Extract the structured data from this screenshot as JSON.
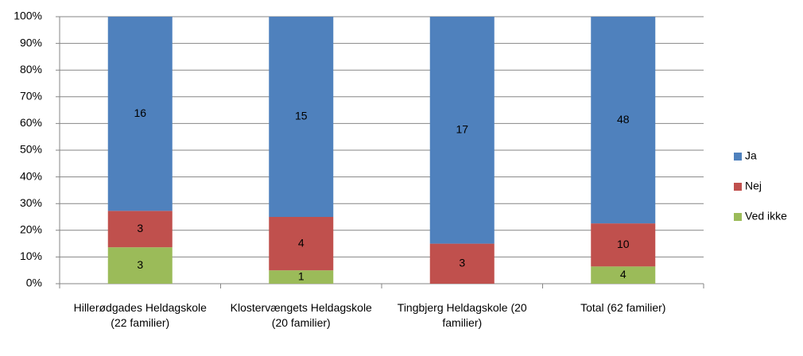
{
  "chart_data": {
    "type": "bar",
    "stacking": "percent",
    "categories": [
      "Hillerødgades Heldagskole (22 familier)",
      "Klostervængets Heldagskole (20 familier)",
      "Tingbjerg Heldagskole (20 familier)",
      "Total (62 familier)"
    ],
    "series": [
      {
        "name": "Ved ikke",
        "color": "#9bbb59",
        "values": [
          3,
          1,
          0,
          4
        ]
      },
      {
        "name": "Nej",
        "color": "#c0504d",
        "values": [
          3,
          4,
          3,
          10
        ]
      },
      {
        "name": "Ja",
        "color": "#4f81bd",
        "values": [
          16,
          15,
          17,
          48
        ]
      }
    ],
    "ylim": [
      0,
      100
    ],
    "yticks": [
      {
        "value": 0,
        "label": "0%"
      },
      {
        "value": 10,
        "label": "10%"
      },
      {
        "value": 20,
        "label": "20%"
      },
      {
        "value": 30,
        "label": "30%"
      },
      {
        "value": 40,
        "label": "40%"
      },
      {
        "value": 50,
        "label": "50%"
      },
      {
        "value": 60,
        "label": "60%"
      },
      {
        "value": 70,
        "label": "70%"
      },
      {
        "value": 80,
        "label": "80%"
      },
      {
        "value": 90,
        "label": "90%"
      },
      {
        "value": 100,
        "label": "100%"
      }
    ],
    "grid": true,
    "legend": "right"
  }
}
